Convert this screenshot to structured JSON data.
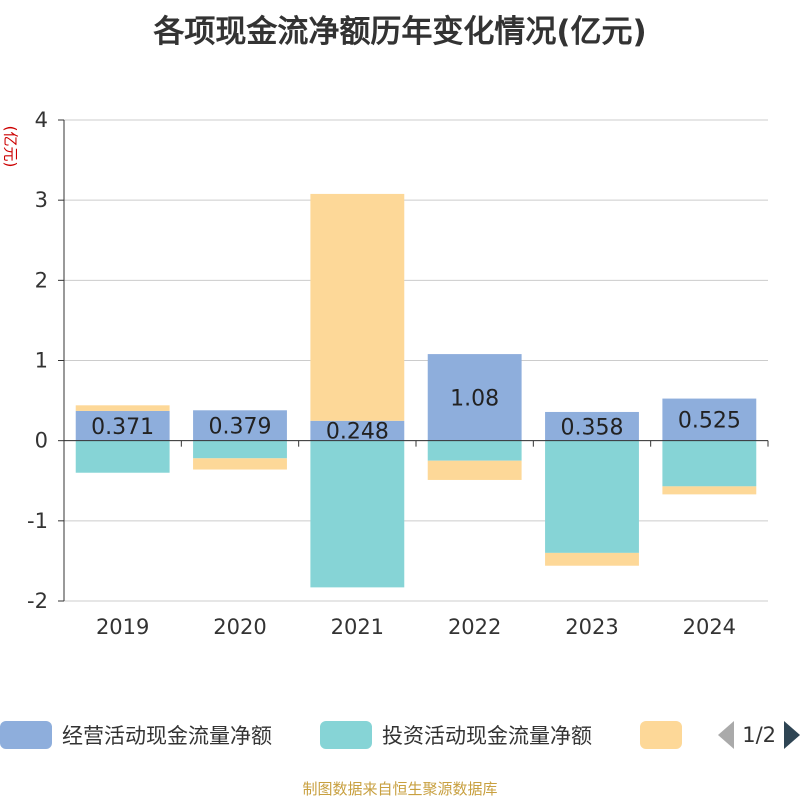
{
  "title": "各项现金流净额历年变化情况(亿元)",
  "unit_label": "(亿元)",
  "source_note": "制图数据来自恒生聚源数据库",
  "legend": {
    "items": [
      {
        "label": "经营活动现金流量净额",
        "color": "#8eaedc"
      },
      {
        "label": "投资活动现金流量净额",
        "color": "#86d4d6"
      },
      {
        "label": "",
        "color": "#fdd898"
      }
    ],
    "page": "1/2"
  },
  "chart_data": {
    "type": "bar",
    "stacked": true,
    "categories": [
      "2019",
      "2020",
      "2021",
      "2022",
      "2023",
      "2024"
    ],
    "ylim": [
      -2,
      4
    ],
    "yticks": [
      -2,
      -1,
      0,
      1,
      2,
      3,
      4
    ],
    "grid": true,
    "series": [
      {
        "name": "经营活动现金流量净额",
        "color": "#8eaedc",
        "values": [
          0.371,
          0.379,
          0.248,
          1.08,
          0.358,
          0.525
        ],
        "labels": [
          "0.371",
          "0.379",
          "0.248",
          "1.08",
          "0.358",
          "0.525"
        ]
      },
      {
        "name": "投资活动现金流量净额",
        "color": "#86d4d6",
        "values": [
          -0.4,
          -0.22,
          -1.83,
          -0.25,
          -1.4,
          -0.57
        ]
      },
      {
        "name": "",
        "color": "#fdd898",
        "values": [
          0.07,
          -0.14,
          2.83,
          -0.24,
          -0.16,
          -0.1
        ]
      }
    ]
  }
}
